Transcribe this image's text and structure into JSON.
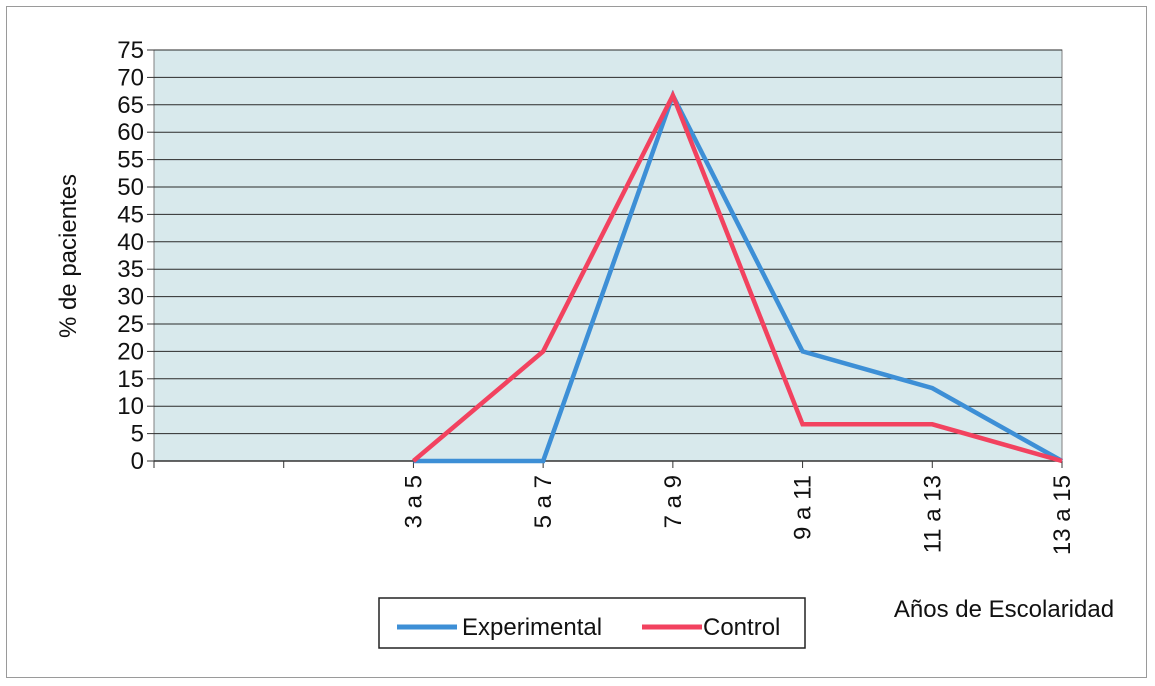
{
  "chart_data": {
    "type": "line",
    "categories": [
      "",
      "3 a 5",
      "5 a 7",
      "7 a 9",
      "9 a 11",
      "11 a 13",
      "13 a 15"
    ],
    "ylabel": "% de pacientes",
    "xlabel": "Años de Escolaridad",
    "ylim": [
      0,
      75
    ],
    "yticks": [
      0,
      5,
      10,
      15,
      20,
      25,
      30,
      35,
      40,
      45,
      50,
      55,
      60,
      65,
      70,
      75
    ],
    "grid": true,
    "legend_position": "bottom",
    "series": [
      {
        "name": "Experimental",
        "color": "#3d8fd6",
        "values": [
          null,
          0,
          0,
          66.7,
          20,
          13.3,
          0
        ]
      },
      {
        "name": "Control",
        "color": "#f2425f",
        "values": [
          null,
          0,
          20,
          66.7,
          6.7,
          6.7,
          0
        ]
      }
    ]
  },
  "colors": {
    "plot_background": "#d8e9ec",
    "gridline": "#2a2a2a"
  }
}
